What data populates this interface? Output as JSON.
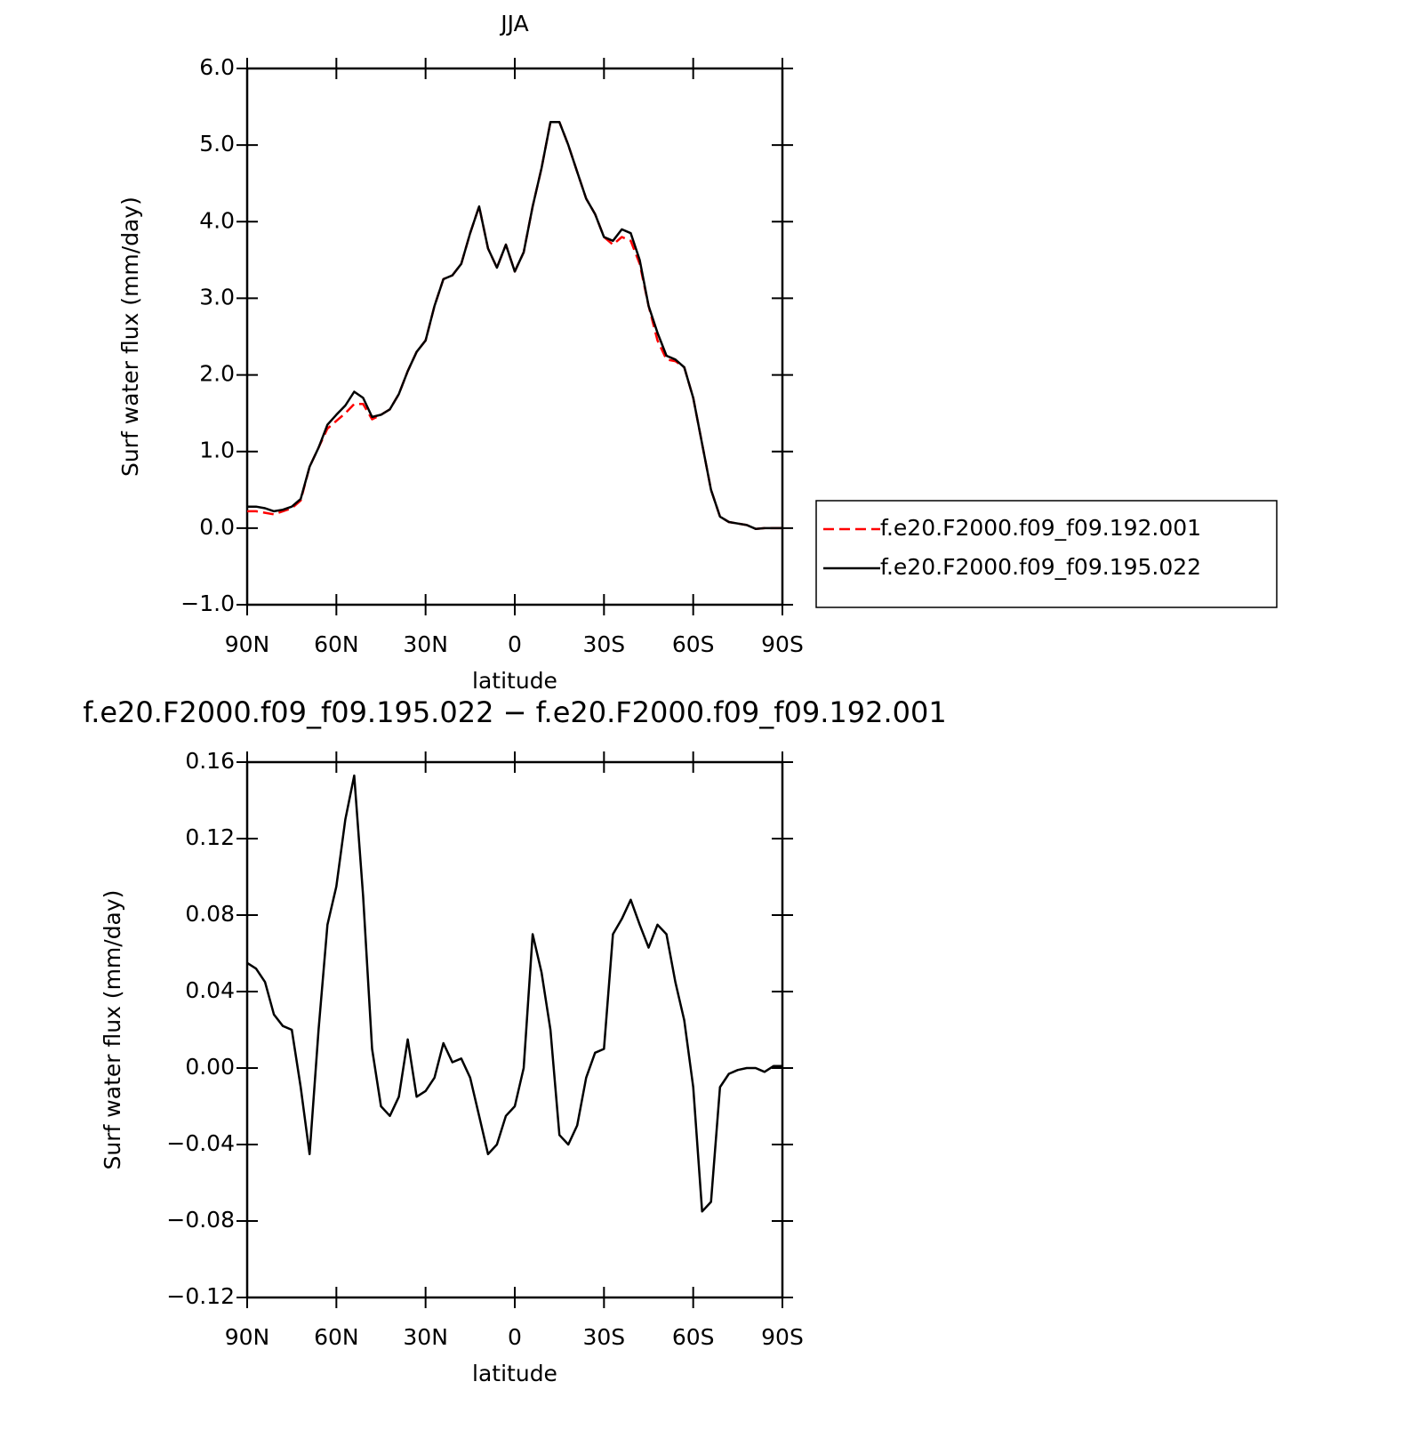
{
  "chart_data": [
    {
      "type": "line",
      "title": "JJA",
      "xlabel": "latitude",
      "ylabel": "Surf water flux (mm/day)",
      "x": [
        90,
        87,
        84,
        81,
        78,
        75,
        72,
        69,
        66,
        63,
        60,
        57,
        54,
        51,
        48,
        45,
        42,
        39,
        36,
        33,
        30,
        27,
        24,
        21,
        18,
        15,
        12,
        9,
        6,
        3,
        0,
        -3,
        -6,
        -9,
        -12,
        -15,
        -18,
        -21,
        -24,
        -27,
        -30,
        -33,
        -36,
        -39,
        -42,
        -45,
        -48,
        -51,
        -54,
        -57,
        -60,
        -63,
        -66,
        -69,
        -72,
        -75,
        -78,
        -81,
        -84,
        -87,
        -90
      ],
      "series": [
        {
          "name": "f.e20.F2000.f09_f09.192.001",
          "color": "#ff0000",
          "linestyle": "dashed",
          "values": [
            0.22,
            0.22,
            0.2,
            0.18,
            0.22,
            0.26,
            0.36,
            0.8,
            1.05,
            1.3,
            1.4,
            1.5,
            1.62,
            1.62,
            1.42,
            1.48,
            1.55,
            1.75,
            2.05,
            2.3,
            2.45,
            2.9,
            3.25,
            3.3,
            3.45,
            3.85,
            4.2,
            3.65,
            3.4,
            3.7,
            3.35,
            3.6,
            4.2,
            4.7,
            5.3,
            5.3,
            5.0,
            4.65,
            4.3,
            4.1,
            3.8,
            3.7,
            3.8,
            3.75,
            3.45,
            2.9,
            2.45,
            2.2,
            2.18,
            2.1,
            1.7,
            1.1,
            0.5,
            0.15,
            0.08,
            0.06,
            0.04,
            -0.01,
            0.0,
            0.0,
            0.0
          ]
        },
        {
          "name": "f.e20.F2000.f09_f09.195.022",
          "color": "#000000",
          "linestyle": "solid",
          "values": [
            0.28,
            0.28,
            0.26,
            0.22,
            0.24,
            0.28,
            0.38,
            0.8,
            1.05,
            1.35,
            1.48,
            1.6,
            1.78,
            1.7,
            1.45,
            1.48,
            1.55,
            1.75,
            2.05,
            2.3,
            2.45,
            2.9,
            3.25,
            3.3,
            3.45,
            3.85,
            4.2,
            3.65,
            3.4,
            3.7,
            3.35,
            3.6,
            4.2,
            4.7,
            5.3,
            5.3,
            5.0,
            4.65,
            4.3,
            4.1,
            3.8,
            3.75,
            3.9,
            3.85,
            3.5,
            2.9,
            2.55,
            2.25,
            2.2,
            2.1,
            1.7,
            1.1,
            0.5,
            0.15,
            0.08,
            0.06,
            0.04,
            -0.01,
            0.0,
            0.0,
            0.0
          ]
        }
      ],
      "xlim": [
        90,
        -90
      ],
      "xticks": [
        {
          "value": 90,
          "label": "90N"
        },
        {
          "value": 60,
          "label": "60N"
        },
        {
          "value": 30,
          "label": "30N"
        },
        0,
        {
          "value": -30,
          "label": "30S"
        },
        {
          "value": -60,
          "label": "60S"
        },
        {
          "value": -90,
          "label": "90S"
        }
      ],
      "ylim": [
        -1,
        6
      ],
      "yticks": [
        {
          "value": -1,
          "label": "−1.0"
        },
        {
          "value": 0,
          "label": "0.0"
        },
        {
          "value": 1,
          "label": "1.0"
        },
        {
          "value": 2,
          "label": "2.0"
        },
        {
          "value": 3,
          "label": "3.0"
        },
        {
          "value": 4,
          "label": "4.0"
        },
        {
          "value": 5,
          "label": "5.0"
        },
        {
          "value": 6,
          "label": "6.0"
        }
      ],
      "legend": "outside-right"
    },
    {
      "type": "line",
      "title": "f.e20.F2000.f09_f09.195.022 − f.e20.F2000.f09_f09.192.001",
      "xlabel": "latitude",
      "ylabel": "Surf water flux (mm/day)",
      "x": [
        90,
        87,
        84,
        81,
        78,
        75,
        72,
        69,
        66,
        63,
        60,
        57,
        54,
        51,
        48,
        45,
        42,
        39,
        36,
        33,
        30,
        27,
        24,
        21,
        18,
        15,
        12,
        9,
        6,
        3,
        0,
        -3,
        -6,
        -9,
        -12,
        -15,
        -18,
        -21,
        -24,
        -27,
        -30,
        -33,
        -36,
        -39,
        -42,
        -45,
        -48,
        -51,
        -54,
        -57,
        -60,
        -63,
        -66,
        -69,
        -72,
        -75,
        -78,
        -81,
        -84,
        -87,
        -90
      ],
      "color": "#000000",
      "values": [
        0.055,
        0.052,
        0.045,
        0.028,
        0.022,
        0.02,
        -0.01,
        -0.045,
        0.02,
        0.075,
        0.095,
        0.13,
        0.153,
        0.09,
        0.01,
        -0.02,
        -0.025,
        -0.015,
        0.015,
        -0.015,
        -0.012,
        -0.005,
        0.013,
        0.003,
        0.005,
        -0.005,
        -0.025,
        -0.045,
        -0.04,
        -0.025,
        -0.02,
        0.0,
        0.07,
        0.05,
        0.02,
        -0.035,
        -0.04,
        -0.03,
        -0.005,
        0.008,
        0.01,
        0.07,
        0.078,
        0.088,
        0.075,
        0.063,
        0.075,
        0.07,
        0.045,
        0.025,
        -0.01,
        -0.075,
        -0.07,
        -0.01,
        -0.003,
        -0.001,
        0.0,
        0.0,
        -0.002,
        0.001,
        0.001
      ],
      "xlim": [
        90,
        -90
      ],
      "xticks": [
        {
          "value": 90,
          "label": "90N"
        },
        {
          "value": 60,
          "label": "60N"
        },
        {
          "value": 30,
          "label": "30N"
        },
        0,
        {
          "value": -30,
          "label": "30S"
        },
        {
          "value": -60,
          "label": "60S"
        },
        {
          "value": -90,
          "label": "90S"
        }
      ],
      "ylim": [
        -0.12,
        0.16
      ],
      "yticks": [
        {
          "value": -0.12,
          "label": "−0.12"
        },
        {
          "value": -0.08,
          "label": "−0.08"
        },
        {
          "value": -0.04,
          "label": "−0.04"
        },
        {
          "value": 0,
          "label": "0.00"
        },
        0.04,
        0.08,
        0.12,
        0.16
      ]
    }
  ]
}
